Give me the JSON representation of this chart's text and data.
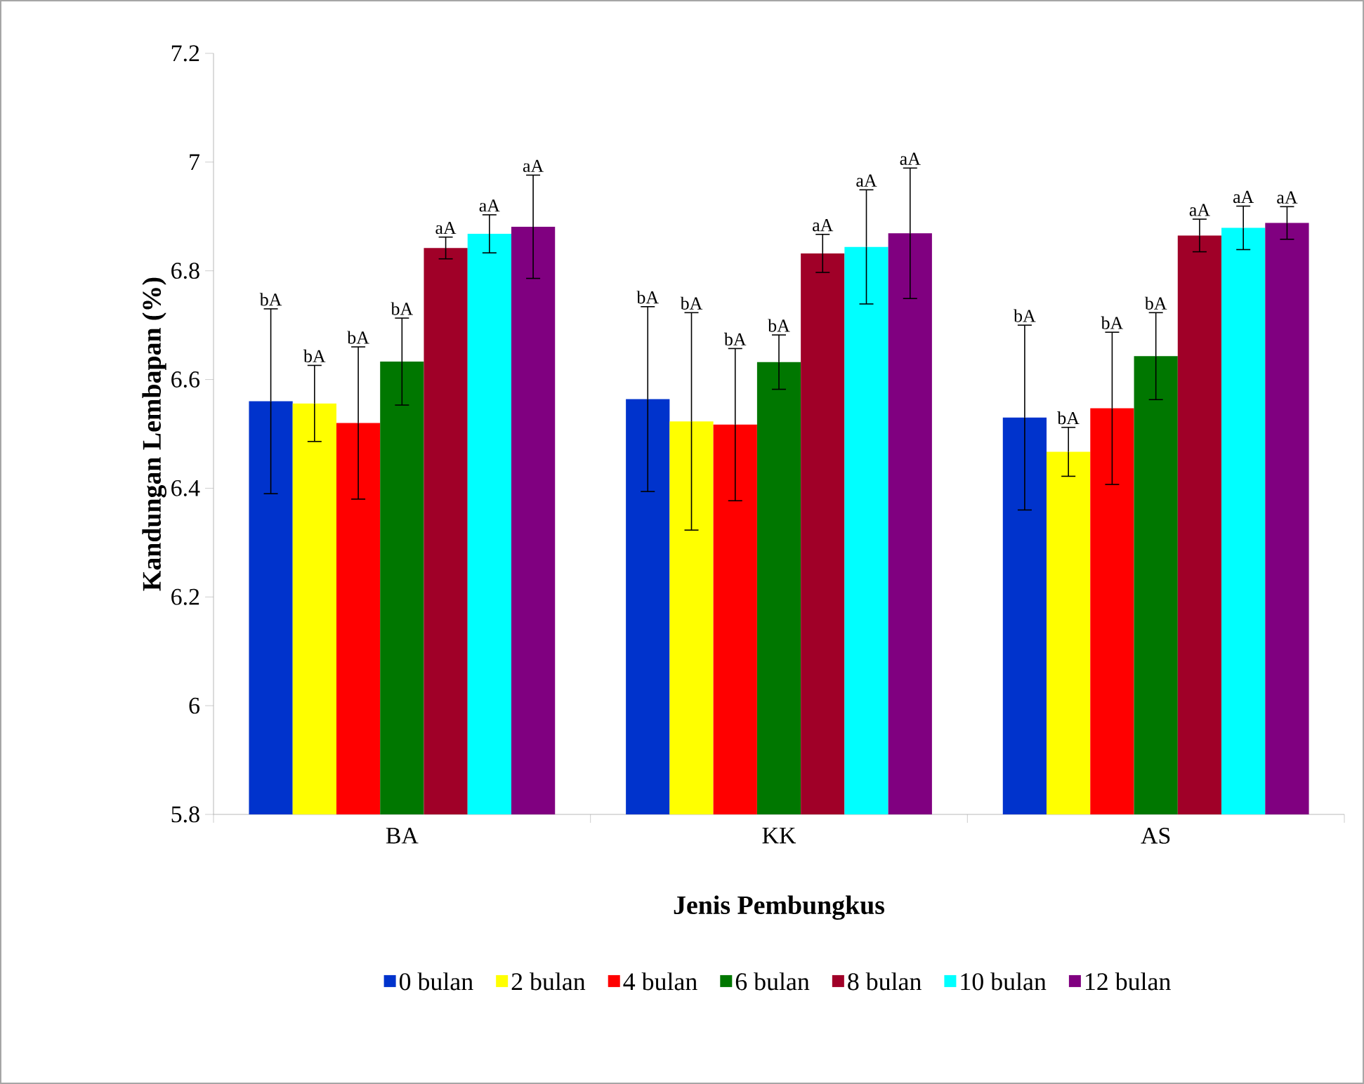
{
  "chart_data": {
    "type": "bar",
    "xlabel": "Jenis Pembungkus",
    "ylabel": "Kandungan Lembapan (%)",
    "categories": [
      "BA",
      "KK",
      "AS"
    ],
    "ylim": [
      5.8,
      7.2
    ],
    "yticks": [
      5.8,
      6,
      6.2,
      6.4,
      6.6,
      6.8,
      7,
      7.2
    ],
    "legend": "bottom",
    "annotations": [
      "bA",
      "bA",
      "bA",
      "bA",
      "bA",
      "bA",
      "bA",
      "bA",
      "bA",
      "bA",
      "bA",
      "bA",
      "aA",
      "aA",
      "aA",
      "aA",
      "aA",
      "aA",
      "aA",
      "aA",
      "aA"
    ],
    "series": [
      {
        "name": "0 bulan",
        "color": "#0033cc",
        "values": [
          6.56,
          6.564,
          6.53
        ],
        "errors": [
          0.17,
          0.17,
          0.17
        ]
      },
      {
        "name": "2 bulan",
        "color": "#ffff00",
        "values": [
          6.556,
          6.523,
          6.467
        ],
        "errors": [
          0.07,
          0.2,
          0.045
        ]
      },
      {
        "name": "4 bulan",
        "color": "#ff0000",
        "values": [
          6.52,
          6.517,
          6.547
        ],
        "errors": [
          0.14,
          0.14,
          0.14
        ]
      },
      {
        "name": "6 bulan",
        "color": "#007700",
        "values": [
          6.633,
          6.632,
          6.643
        ],
        "errors": [
          0.08,
          0.05,
          0.08
        ]
      },
      {
        "name": "8 bulan",
        "color": "#a00028",
        "values": [
          6.842,
          6.832,
          6.865
        ],
        "errors": [
          0.02,
          0.035,
          0.03
        ]
      },
      {
        "name": "10 bulan",
        "color": "#00ffff",
        "values": [
          6.868,
          6.844,
          6.879
        ],
        "errors": [
          0.035,
          0.105,
          0.04
        ]
      },
      {
        "name": "12 bulan",
        "color": "#800080",
        "values": [
          6.881,
          6.869,
          6.888
        ],
        "errors": [
          0.095,
          0.12,
          0.03
        ]
      }
    ]
  }
}
